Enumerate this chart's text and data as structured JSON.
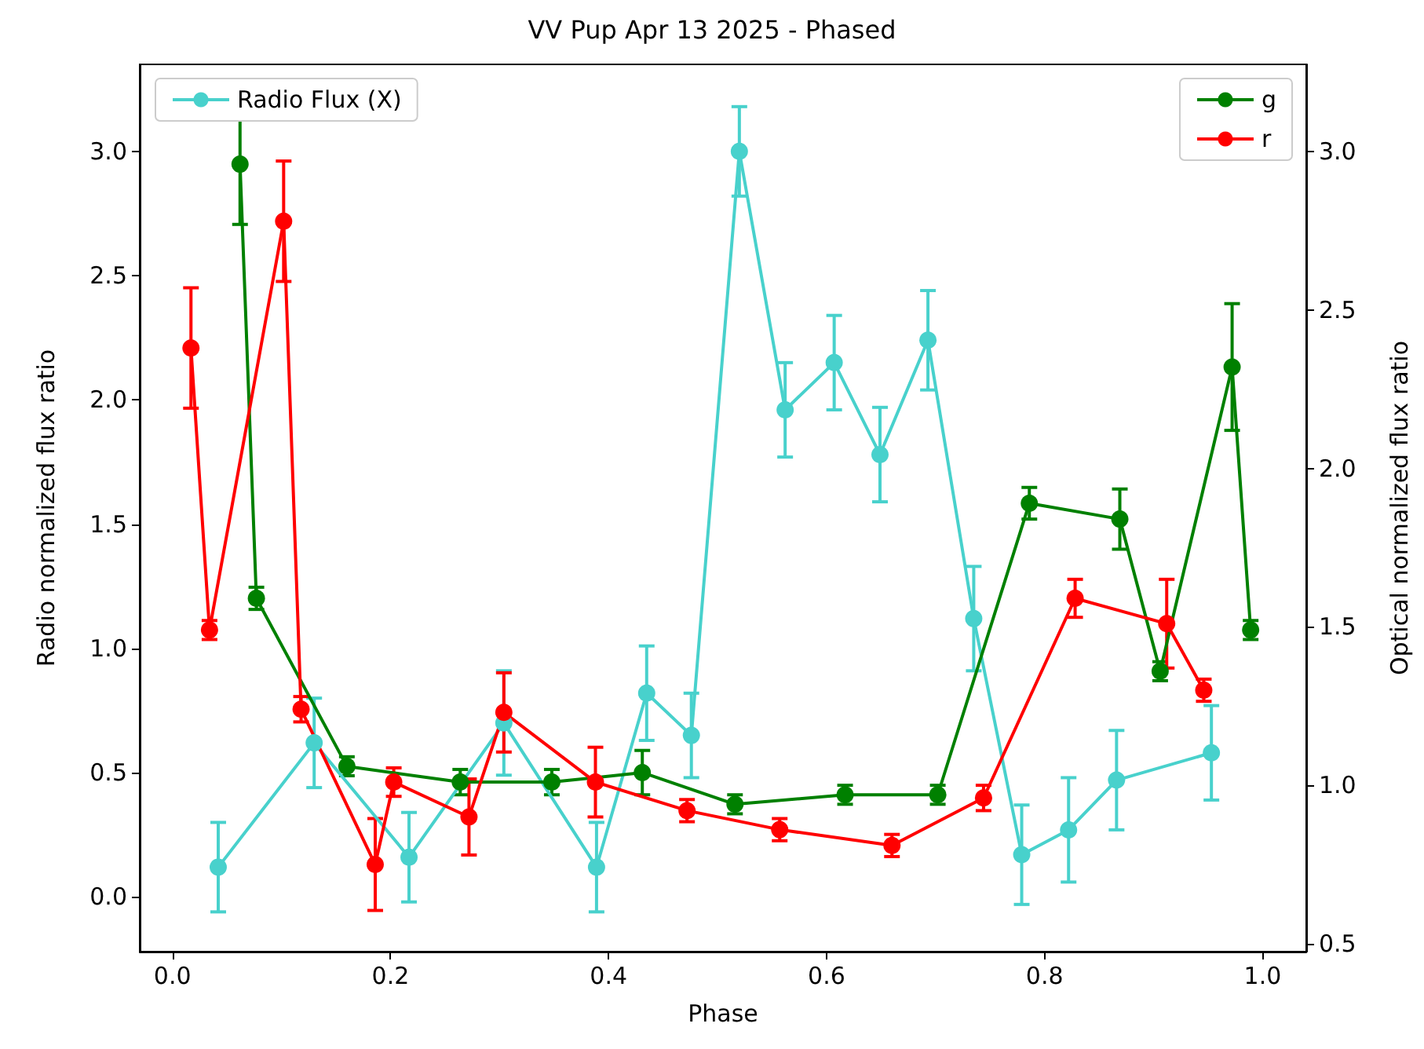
{
  "chart_data": {
    "type": "line",
    "title": "VV Pup Apr 13 2025 - Phased",
    "xlabel": "Phase",
    "ylabel": "Radio normalized flux ratio",
    "y2label": "Optical normalized flux ratio",
    "xlim": [
      -0.03,
      1.04
    ],
    "xticks": [
      {
        "value": 0,
        "label": "0.0"
      },
      0.2,
      0.4,
      0.6,
      0.8,
      {
        "value": 1,
        "label": "1.0"
      }
    ],
    "ylim": [
      -0.22,
      3.35
    ],
    "yticks": [
      {
        "value": 0,
        "label": "0.0"
      },
      0.5,
      {
        "value": 1,
        "label": "1.0"
      },
      1.5,
      {
        "value": 2,
        "label": "2.0"
      },
      2.5,
      {
        "value": 3,
        "label": "3.0"
      }
    ],
    "y2lim": [
      0.475,
      3.275
    ],
    "y2ticks": [
      0.5,
      {
        "value": 1,
        "label": "1.0"
      },
      1.5,
      {
        "value": 2,
        "label": "2.0"
      },
      2.5,
      {
        "value": 3,
        "label": "3.0"
      }
    ],
    "grid": false,
    "legend": "top",
    "marker": "circle",
    "line_style": "solid",
    "series": [
      {
        "name": "Radio Flux (X)",
        "color": "#48d1cc",
        "x": [
          0.042,
          0.13,
          0.217,
          0.304,
          0.389,
          0.435,
          0.476,
          0.52,
          0.562,
          0.607,
          0.649,
          0.693,
          0.735,
          0.779,
          0.822,
          0.866,
          0.953
        ],
        "values": [
          0.12,
          0.62,
          0.16,
          0.7,
          0.12,
          0.82,
          0.65,
          3.0,
          1.96,
          2.15,
          1.78,
          2.24,
          1.12,
          0.17,
          0.27,
          0.47,
          0.58
        ],
        "errors": [
          0.18,
          0.18,
          0.18,
          0.21,
          0.18,
          0.19,
          0.17,
          0.18,
          0.19,
          0.19,
          0.19,
          0.2,
          0.21,
          0.2,
          0.21,
          0.2,
          0.19
        ]
      },
      {
        "name": "g",
        "color": "#008000",
        "axis": "y2",
        "x": [
          0.062,
          0.077,
          0.16,
          0.264,
          0.348,
          0.431,
          0.516,
          0.617,
          0.702,
          0.786,
          0.869,
          0.906,
          0.972,
          0.989
        ],
        "values": [
          2.96,
          1.59,
          1.06,
          1.01,
          1.01,
          1.04,
          0.94,
          0.97,
          0.97,
          1.89,
          1.84,
          1.36,
          2.32,
          1.49
        ],
        "errors": [
          0.19,
          0.035,
          0.03,
          0.04,
          0.04,
          0.07,
          0.03,
          0.03,
          0.03,
          0.05,
          0.095,
          0.03,
          0.2,
          0.03
        ]
      },
      {
        "name": "r",
        "color": "#ff0000",
        "axis": "y2",
        "x": [
          0.017,
          0.034,
          0.102,
          0.118,
          0.186,
          0.203,
          0.272,
          0.304,
          0.388,
          0.472,
          0.557,
          0.66,
          0.744,
          0.828,
          0.912,
          0.946
        ],
        "values": [
          2.38,
          1.49,
          2.78,
          1.24,
          0.75,
          1.01,
          0.9,
          1.23,
          1.01,
          0.92,
          0.86,
          0.81,
          0.96,
          1.59,
          1.51,
          1.3
        ],
        "errors": [
          0.19,
          0.03,
          0.19,
          0.04,
          0.145,
          0.045,
          0.12,
          0.125,
          0.11,
          0.035,
          0.035,
          0.035,
          0.04,
          0.06,
          0.14,
          0.035
        ]
      }
    ]
  }
}
